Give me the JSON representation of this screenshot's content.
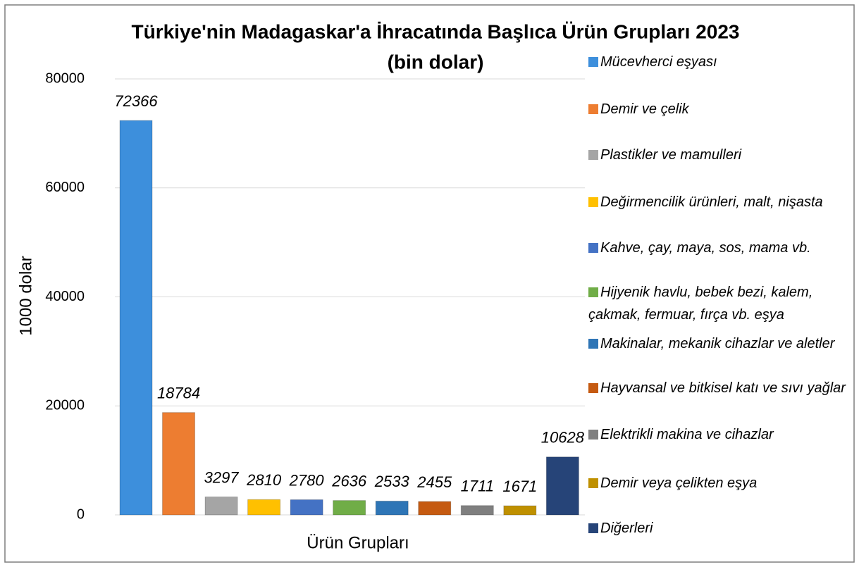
{
  "chart_data": {
    "type": "bar",
    "title": "Türkiye'nin Madagaskar'a İhracatında Başlıca Ürün Grupları 2023",
    "subtitle": "(bin dolar)",
    "x_label": "Ürün Grupları",
    "y_label": "1000 dolar",
    "categories": [
      null
    ],
    "series": [
      {
        "name": "Mücevherci eşyası",
        "color": "#3d8fdc",
        "values": [
          72366
        ]
      },
      {
        "name": "Demir ve çelik",
        "color": "#ed7d31",
        "values": [
          18784
        ]
      },
      {
        "name": "Plastikler ve mamulleri",
        "color": "#a5a5a5",
        "values": [
          3297
        ]
      },
      {
        "name": "Değirmencilik ürünleri, malt, nişasta",
        "color": "#ffc000",
        "values": [
          2810
        ]
      },
      {
        "name": "Kahve, çay, maya, sos, mama vb.",
        "color": "#4472c4",
        "values": [
          2780
        ]
      },
      {
        "name": "Hijyenik havlu, bebek bezi, kalem, çakmak, fermuar, fırça vb. eşya",
        "color": "#70ad47",
        "values": [
          2636
        ]
      },
      {
        "name": "Makinalar, mekanik cihazlar ve aletler",
        "color": "#2e75b6",
        "values": [
          2533
        ]
      },
      {
        "name": "Hayvansal ve bitkisel katı ve sıvı yağlar",
        "color": "#c55a11",
        "values": [
          2455
        ]
      },
      {
        "name": "Elektrikli makina ve cihazlar",
        "color": "#7f7f7f",
        "values": [
          1711
        ]
      },
      {
        "name": "Demir veya çelikten eşya",
        "color": "#bf9000",
        "values": [
          1671
        ]
      },
      {
        "name": "Diğerleri",
        "color": "#264478",
        "values": [
          10628
        ]
      }
    ],
    "ylim": [
      0,
      80000
    ],
    "yticks": [
      0,
      20000,
      40000,
      60000,
      80000
    ],
    "grid": true,
    "legend": "right"
  }
}
